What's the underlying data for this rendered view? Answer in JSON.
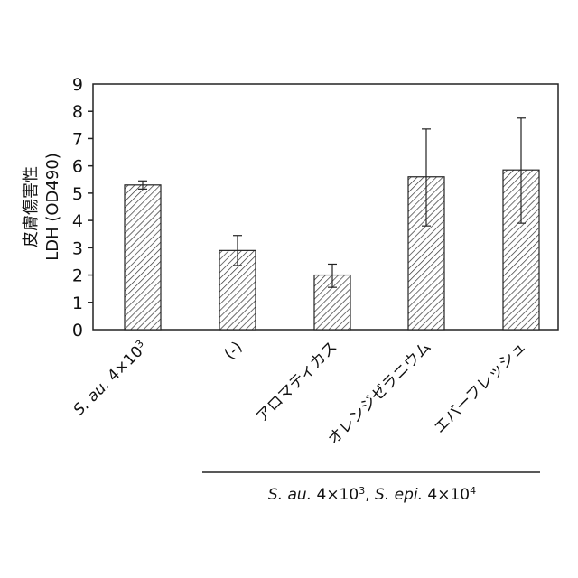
{
  "chart_data": {
    "type": "bar",
    "ylabel_line1": "皮膚傷害性",
    "ylabel_line2": "LDH (OD490)",
    "ylim": [
      0,
      9
    ],
    "yticks": [
      "0",
      "1",
      "2",
      "3",
      "4",
      "5",
      "6",
      "7",
      "8",
      "9"
    ],
    "categories": [
      {
        "parts": [
          {
            "t": "S. au.",
            "italic": true
          },
          {
            "t": " 4×10"
          },
          {
            "t": "3",
            "sup": true
          }
        ]
      },
      {
        "parts": [
          {
            "t": "(-)"
          }
        ]
      },
      {
        "parts": [
          {
            "t": "アロマティカス"
          }
        ]
      },
      {
        "parts": [
          {
            "t": "オレンジゼラニウム"
          }
        ]
      },
      {
        "parts": [
          {
            "t": "エバーフレッシュ"
          }
        ]
      }
    ],
    "values": [
      5.3,
      2.9,
      2.0,
      5.6,
      5.85
    ],
    "error_upper": [
      5.45,
      3.45,
      2.4,
      7.35,
      7.75
    ],
    "error_lower": [
      5.15,
      2.35,
      1.55,
      3.8,
      3.9
    ],
    "group_label": {
      "parts": [
        {
          "t": "S. au.",
          "italic": true
        },
        {
          "t": " 4×10"
        },
        {
          "t": "3",
          "sup": true
        },
        {
          "t": ", "
        },
        {
          "t": "S. epi.",
          "italic": true
        },
        {
          "t": " 4×10"
        },
        {
          "t": "4",
          "sup": true
        }
      ]
    },
    "grid": false,
    "legend": "none",
    "bar_fill": "hatched",
    "colors": {
      "bar_stroke": "#222222",
      "hatch": "#333333",
      "axis": "#222222"
    }
  }
}
